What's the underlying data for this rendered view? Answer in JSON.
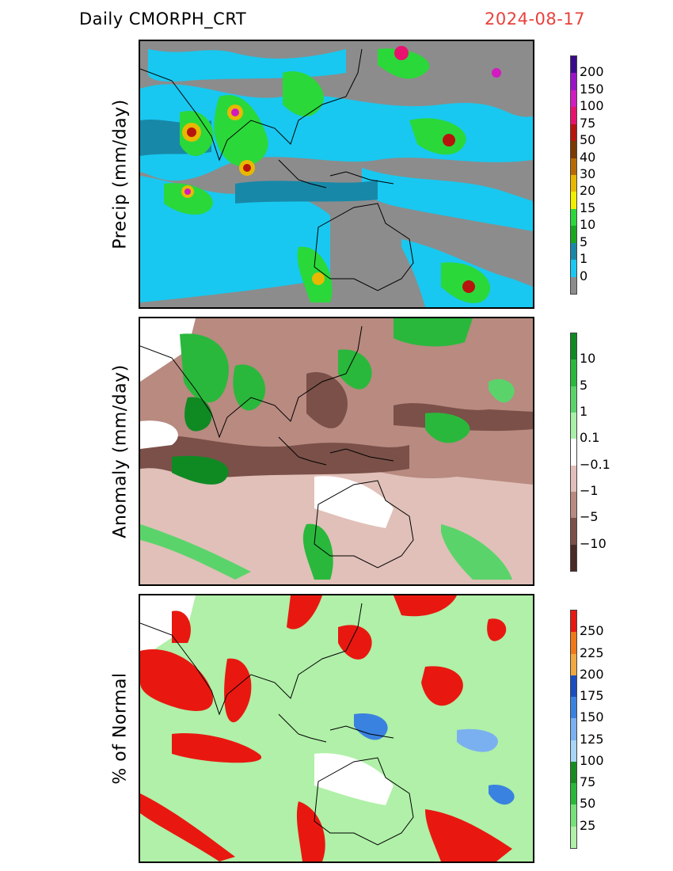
{
  "header": {
    "left": "Daily  CMORPH_CRT",
    "right": "2024-08-17",
    "date_color": "#e8413c"
  },
  "panels": [
    {
      "ylabel": "Precip  (mm/day)",
      "colorbar": {
        "labels": [
          "200",
          "150",
          "100",
          "75",
          "50",
          "40",
          "30",
          "20",
          "15",
          "10",
          "5",
          "1",
          "0"
        ],
        "colors": [
          "#3a0a8c",
          "#9a12c8",
          "#d21ac0",
          "#e8126e",
          "#b8140e",
          "#7a3a00",
          "#b86a00",
          "#e8b800",
          "#f2f000",
          "#2ad83a",
          "#17a820",
          "#1888a8",
          "#18c8f0",
          "#8c8c8c"
        ]
      }
    },
    {
      "ylabel": "Anomaly  (mm/day)",
      "colorbar": {
        "labels": [
          "10",
          "5",
          "1",
          "0.1",
          "−0.1",
          "−1",
          "−5",
          "−10"
        ],
        "colors": [
          "#0f8a23",
          "#2ab83c",
          "#5ad46a",
          "#a8f0a8",
          "#ffffff",
          "#e0c0b8",
          "#b88a80",
          "#7a5048",
          "#4a2a24"
        ]
      }
    },
    {
      "ylabel": "% of Normal",
      "colorbar": {
        "labels": [
          "250",
          "225",
          "200",
          "175",
          "150",
          "125",
          "100",
          "75",
          "50",
          "25"
        ],
        "colors": [
          "#e81810",
          "#f07818",
          "#f0a840",
          "#1a4ec0",
          "#3a82e0",
          "#7ab0f0",
          "#a8d4f8",
          "#168c20",
          "#2ab83a",
          "#78e07a",
          "#b0f0a8"
        ]
      }
    }
  ]
}
